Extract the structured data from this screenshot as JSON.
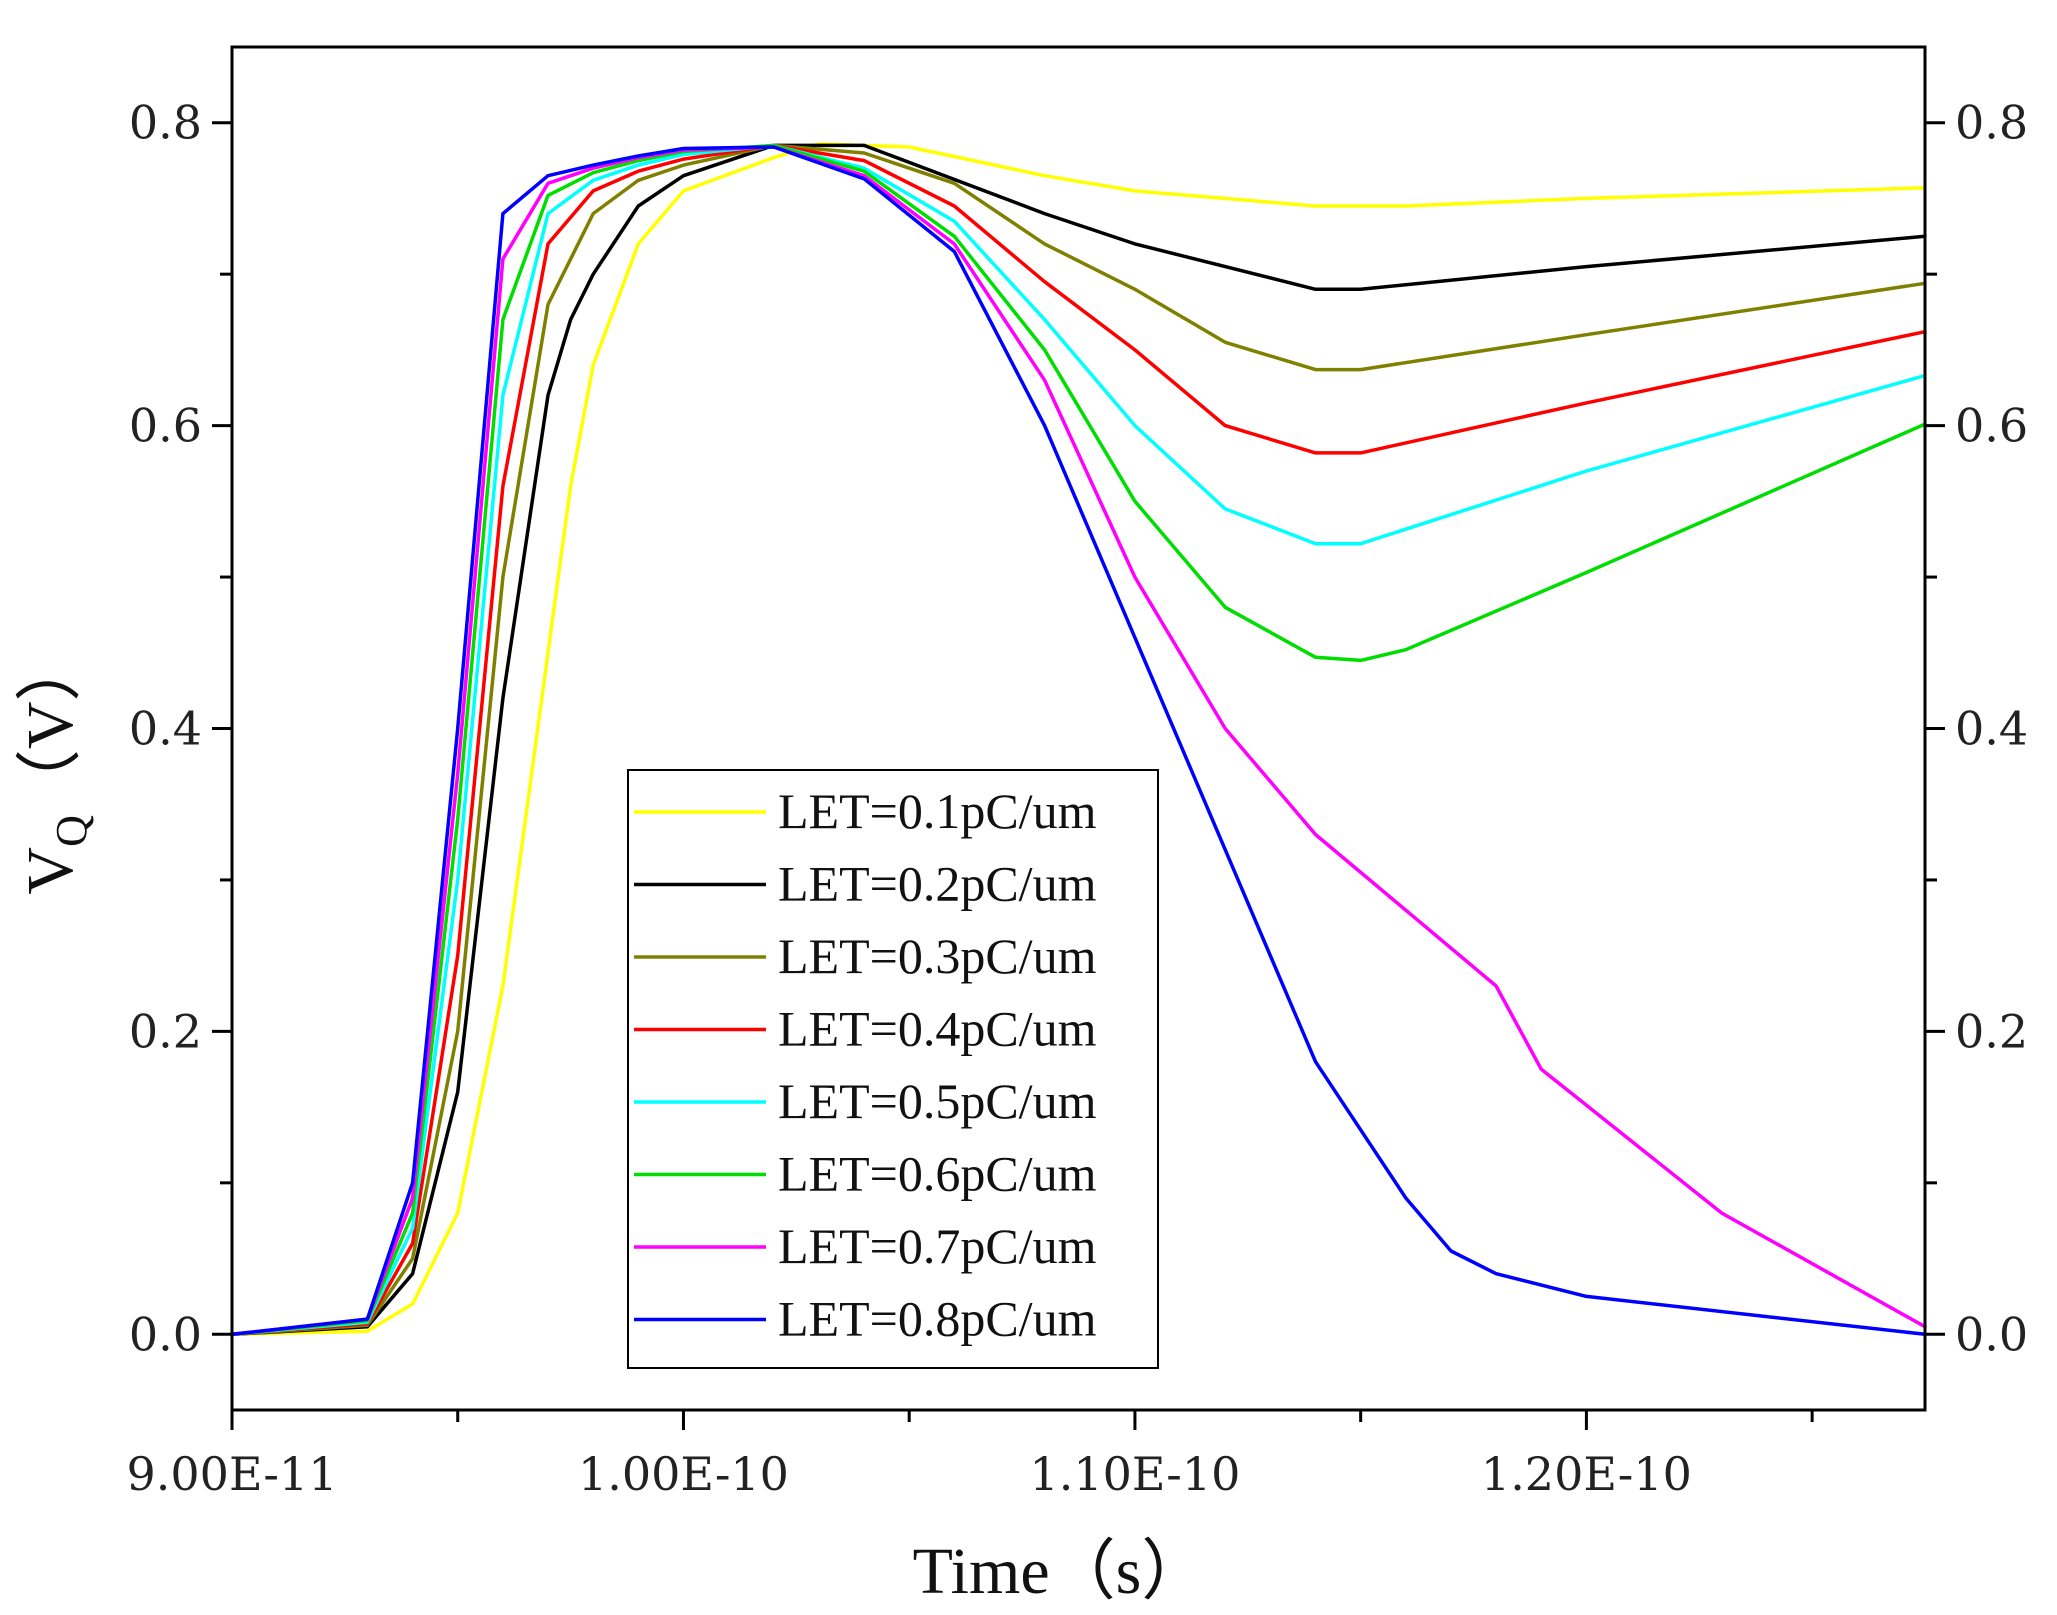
{
  "chart_data": {
    "type": "line",
    "title": "",
    "xlabel": "Time（s）",
    "ylabel_main": "V",
    "ylabel_sub": "Q",
    "ylabel_unit": "（V）",
    "xlim": [
      9e-11,
      1.275e-10
    ],
    "ylim": [
      -0.05,
      0.85
    ],
    "x_ticks": [
      {
        "value": 9e-11,
        "label": "9.00E-11"
      },
      {
        "value": 1e-10,
        "label": "1.00E-10"
      },
      {
        "value": 1.1e-10,
        "label": "1.10E-10"
      },
      {
        "value": 1.2e-10,
        "label": "1.20E-10"
      }
    ],
    "x_minor_ticks": [
      9.5e-11,
      1.05e-10,
      1.15e-10,
      1.25e-10
    ],
    "y_ticks": [
      {
        "value": 0.0,
        "label": "0.0"
      },
      {
        "value": 0.2,
        "label": "0.2"
      },
      {
        "value": 0.4,
        "label": "0.4"
      },
      {
        "value": 0.6,
        "label": "0.6"
      },
      {
        "value": 0.8,
        "label": "0.8"
      }
    ],
    "y_minor_ticks": [
      0.1,
      0.3,
      0.5,
      0.7
    ],
    "legend_position": "center-left",
    "series": [
      {
        "name": "LET=0.1pC/um",
        "color": "#ffff00",
        "x": [
          9e-11,
          9.3e-11,
          9.4e-11,
          9.5e-11,
          9.6e-11,
          9.7e-11,
          9.75e-11,
          9.8e-11,
          9.9e-11,
          1e-10,
          1.02e-10,
          1.03e-10,
          1.05e-10,
          1.08e-10,
          1.1e-10,
          1.14e-10,
          1.16e-10,
          1.2e-10,
          1.275e-10
        ],
        "y": [
          0.0,
          0.002,
          0.02,
          0.08,
          0.23,
          0.45,
          0.56,
          0.64,
          0.72,
          0.755,
          0.777,
          0.786,
          0.784,
          0.765,
          0.755,
          0.745,
          0.745,
          0.75,
          0.757
        ]
      },
      {
        "name": "LET=0.2pC/um",
        "color": "#000000",
        "x": [
          9e-11,
          9.3e-11,
          9.4e-11,
          9.5e-11,
          9.6e-11,
          9.7e-11,
          9.75e-11,
          9.8e-11,
          9.9e-11,
          1e-10,
          1.02e-10,
          1.04e-10,
          1.08e-10,
          1.1e-10,
          1.14e-10,
          1.15e-10,
          1.2e-10,
          1.275e-10
        ],
        "y": [
          0.0,
          0.005,
          0.04,
          0.16,
          0.42,
          0.62,
          0.67,
          0.7,
          0.745,
          0.765,
          0.785,
          0.785,
          0.74,
          0.72,
          0.69,
          0.69,
          0.705,
          0.725
        ]
      },
      {
        "name": "LET=0.3pC/um",
        "color": "#808000",
        "x": [
          9e-11,
          9.3e-11,
          9.4e-11,
          9.5e-11,
          9.6e-11,
          9.7e-11,
          9.8e-11,
          9.9e-11,
          1e-10,
          1.02e-10,
          1.04e-10,
          1.06e-10,
          1.08e-10,
          1.1e-10,
          1.12e-10,
          1.14e-10,
          1.15e-10,
          1.2e-10,
          1.275e-10
        ],
        "y": [
          0.0,
          0.006,
          0.05,
          0.2,
          0.5,
          0.68,
          0.74,
          0.762,
          0.772,
          0.785,
          0.78,
          0.76,
          0.72,
          0.69,
          0.655,
          0.637,
          0.637,
          0.66,
          0.694
        ]
      },
      {
        "name": "LET=0.4pC/um",
        "color": "#ff0000",
        "x": [
          9e-11,
          9.3e-11,
          9.4e-11,
          9.5e-11,
          9.6e-11,
          9.7e-11,
          9.8e-11,
          9.9e-11,
          1e-10,
          1.02e-10,
          1.04e-10,
          1.06e-10,
          1.08e-10,
          1.1e-10,
          1.12e-10,
          1.14e-10,
          1.15e-10,
          1.2e-10,
          1.275e-10
        ],
        "y": [
          0.0,
          0.007,
          0.06,
          0.25,
          0.56,
          0.72,
          0.755,
          0.768,
          0.776,
          0.785,
          0.775,
          0.745,
          0.695,
          0.65,
          0.6,
          0.582,
          0.582,
          0.615,
          0.662
        ]
      },
      {
        "name": "LET=0.5pC/um",
        "color": "#00ffff",
        "x": [
          9e-11,
          9.3e-11,
          9.4e-11,
          9.5e-11,
          9.6e-11,
          9.7e-11,
          9.8e-11,
          9.9e-11,
          1e-10,
          1.02e-10,
          1.04e-10,
          1.06e-10,
          1.08e-10,
          1.1e-10,
          1.12e-10,
          1.14e-10,
          1.15e-10,
          1.2e-10,
          1.275e-10
        ],
        "y": [
          0.0,
          0.008,
          0.07,
          0.3,
          0.62,
          0.74,
          0.762,
          0.772,
          0.779,
          0.785,
          0.77,
          0.735,
          0.67,
          0.6,
          0.545,
          0.522,
          0.522,
          0.57,
          0.633
        ]
      },
      {
        "name": "LET=0.6pC/um",
        "color": "#00dd00",
        "x": [
          9e-11,
          9.3e-11,
          9.4e-11,
          9.5e-11,
          9.6e-11,
          9.7e-11,
          9.8e-11,
          9.9e-11,
          1e-10,
          1.02e-10,
          1.04e-10,
          1.06e-10,
          1.08e-10,
          1.1e-10,
          1.12e-10,
          1.14e-10,
          1.15e-10,
          1.16e-10,
          1.2e-10,
          1.275e-10
        ],
        "y": [
          0.0,
          0.009,
          0.08,
          0.34,
          0.67,
          0.752,
          0.767,
          0.775,
          0.781,
          0.785,
          0.768,
          0.725,
          0.65,
          0.55,
          0.48,
          0.447,
          0.445,
          0.452,
          0.503,
          0.601
        ]
      },
      {
        "name": "LET=0.7pC/um",
        "color": "#ff00ff",
        "x": [
          9e-11,
          9.3e-11,
          9.4e-11,
          9.5e-11,
          9.6e-11,
          9.7e-11,
          9.8e-11,
          9.9e-11,
          1e-10,
          1.02e-10,
          1.04e-10,
          1.06e-10,
          1.08e-10,
          1.1e-10,
          1.12e-10,
          1.14e-10,
          1.16e-10,
          1.18e-10,
          1.19e-10,
          1.23e-10,
          1.275e-10
        ],
        "y": [
          0.0,
          0.01,
          0.09,
          0.37,
          0.71,
          0.76,
          0.77,
          0.777,
          0.782,
          0.784,
          0.765,
          0.72,
          0.63,
          0.5,
          0.4,
          0.33,
          0.28,
          0.23,
          0.175,
          0.08,
          0.005
        ]
      },
      {
        "name": "LET=0.8pC/um",
        "color": "#0000ff",
        "x": [
          9e-11,
          9.3e-11,
          9.4e-11,
          9.5e-11,
          9.6e-11,
          9.7e-11,
          9.8e-11,
          9.9e-11,
          1e-10,
          1.02e-10,
          1.04e-10,
          1.06e-10,
          1.08e-10,
          1.1e-10,
          1.12e-10,
          1.14e-10,
          1.16e-10,
          1.17e-10,
          1.18e-10,
          1.2e-10,
          1.275e-10
        ],
        "y": [
          0.0,
          0.01,
          0.1,
          0.4,
          0.74,
          0.765,
          0.772,
          0.778,
          0.783,
          0.784,
          0.763,
          0.715,
          0.6,
          0.46,
          0.32,
          0.18,
          0.09,
          0.055,
          0.04,
          0.025,
          0.0
        ]
      }
    ]
  }
}
